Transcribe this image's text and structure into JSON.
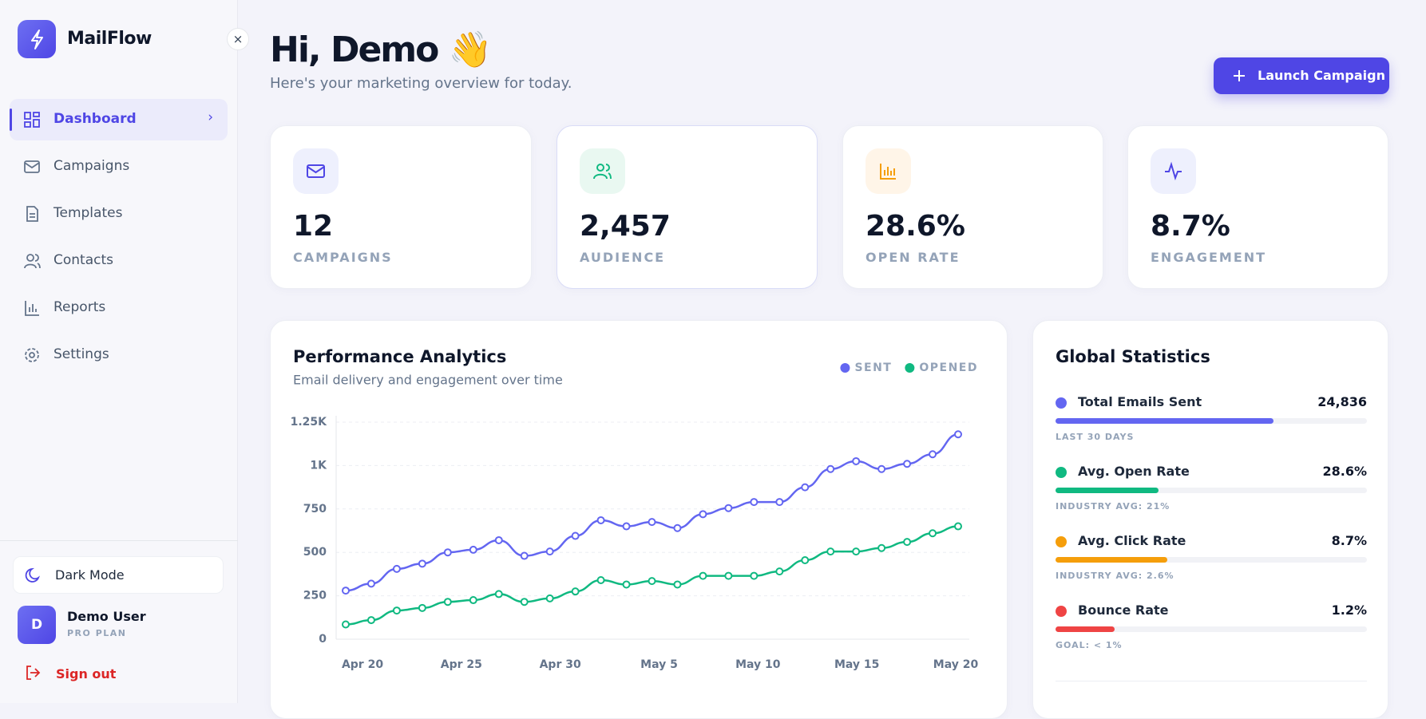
{
  "sidebar": {
    "brand": "MailFlow",
    "nav": [
      "Dashboard",
      "Campaigns",
      "Templates",
      "Contacts",
      "Reports",
      "Settings"
    ],
    "dark_mode": "Dark Mode",
    "user": {
      "initial": "D",
      "name": "Demo User",
      "plan": "PRO PLAN"
    },
    "sign_out": "Sign out"
  },
  "header": {
    "greeting": "Hi, Demo 👋",
    "subtitle": "Here's your marketing overview for today.",
    "button": "Launch Campaign"
  },
  "stats": [
    {
      "value": "12",
      "label": "CAMPAIGNS"
    },
    {
      "value": "2,457",
      "label": "AUDIENCE"
    },
    {
      "value": "28.6%",
      "label": "OPEN RATE"
    },
    {
      "value": "8.7%",
      "label": "ENGAGEMENT"
    }
  ],
  "performance_chart": {
    "type": "line",
    "title": "Performance Analytics",
    "subtitle": "Email delivery and engagement over time",
    "x_labels": [
      "Apr 20",
      "Apr 25",
      "Apr 30",
      "May 5",
      "May 10",
      "May 15",
      "May 20"
    ],
    "series": [
      {
        "name": "SENT",
        "color": "#6366f1",
        "values": [
          280,
          320,
          405,
          435,
          500,
          515,
          570,
          480,
          505,
          595,
          685,
          650,
          675,
          640,
          720,
          755,
          790,
          790,
          875,
          980,
          1025,
          980,
          1010,
          1065,
          1180
        ]
      },
      {
        "name": "OPENED",
        "color": "#10b981",
        "values": [
          85,
          110,
          165,
          180,
          215,
          225,
          260,
          215,
          235,
          275,
          340,
          315,
          335,
          315,
          365,
          365,
          365,
          390,
          455,
          505,
          505,
          525,
          560,
          610,
          650
        ]
      }
    ],
    "ylim": [
      0,
      1250
    ],
    "yticks": [
      0,
      250,
      500,
      750,
      {
        "value": 1000,
        "label": "1K"
      },
      {
        "value": 1250,
        "label": "1.25K"
      }
    ],
    "grid": true
  },
  "global_stats": {
    "title": "Global Statistics",
    "rows": [
      {
        "label": "Total Emails Sent",
        "value": "24,836",
        "note": "LAST 30 DAYS",
        "color": "#6366f1",
        "progress": 70
      },
      {
        "label": "Avg. Open Rate",
        "value": "28.6%",
        "note": "INDUSTRY AVG: 21%",
        "color": "#10b981",
        "progress": 33
      },
      {
        "label": "Avg. Click Rate",
        "value": "8.7%",
        "note": "INDUSTRY AVG: 2.6%",
        "color": "#f59e0b",
        "progress": 36
      },
      {
        "label": "Bounce Rate",
        "value": "1.2%",
        "note": "GOAL: < 1%",
        "color": "#ef4444",
        "progress": 19
      }
    ]
  }
}
